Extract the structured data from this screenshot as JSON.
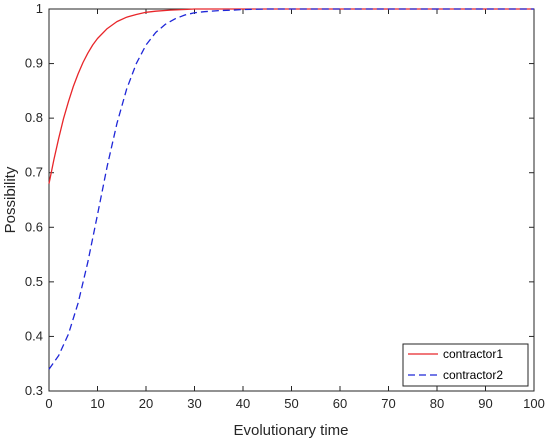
{
  "chart_data": {
    "type": "line",
    "xlabel": "Evolutionary time",
    "ylabel": "Possibility",
    "xlim": [
      0,
      100
    ],
    "ylim": [
      0.3,
      1
    ],
    "xticks": [
      0,
      10,
      20,
      30,
      40,
      50,
      60,
      70,
      80,
      90,
      100
    ],
    "yticks": [
      0.3,
      0.4,
      0.5,
      0.6,
      0.7,
      0.8,
      0.9,
      1
    ],
    "grid": false,
    "legend_position": "bottom-right",
    "series": [
      {
        "name": "contractor1",
        "color": "#e8262a",
        "line_style": "solid",
        "x": [
          0,
          1,
          2,
          3,
          4,
          5,
          6,
          7,
          8,
          9,
          10,
          12,
          14,
          16,
          18,
          20,
          22,
          25,
          28,
          30,
          35,
          40,
          50,
          60,
          70,
          80,
          90,
          100
        ],
        "y": [
          0.68,
          0.724,
          0.763,
          0.799,
          0.83,
          0.858,
          0.881,
          0.902,
          0.919,
          0.934,
          0.946,
          0.964,
          0.977,
          0.985,
          0.99,
          0.994,
          0.996,
          0.998,
          0.999,
          1.0,
          1.0,
          1.0,
          1.0,
          1.0,
          1.0,
          1.0,
          1.0,
          1.0
        ]
      },
      {
        "name": "contractor2",
        "color": "#1f27d8",
        "line_style": "dashed",
        "x": [
          0,
          2,
          4,
          6,
          8,
          10,
          12,
          14,
          16,
          18,
          20,
          22,
          24,
          26,
          28,
          30,
          32,
          35,
          38,
          40,
          45,
          50,
          60,
          70,
          80,
          90,
          100
        ],
        "y": [
          0.34,
          0.365,
          0.404,
          0.461,
          0.536,
          0.623,
          0.712,
          0.79,
          0.853,
          0.9,
          0.934,
          0.957,
          0.972,
          0.982,
          0.989,
          0.993,
          0.995,
          0.997,
          0.998,
          0.999,
          1.0,
          1.0,
          1.0,
          1.0,
          1.0,
          1.0,
          1.0
        ]
      }
    ]
  }
}
